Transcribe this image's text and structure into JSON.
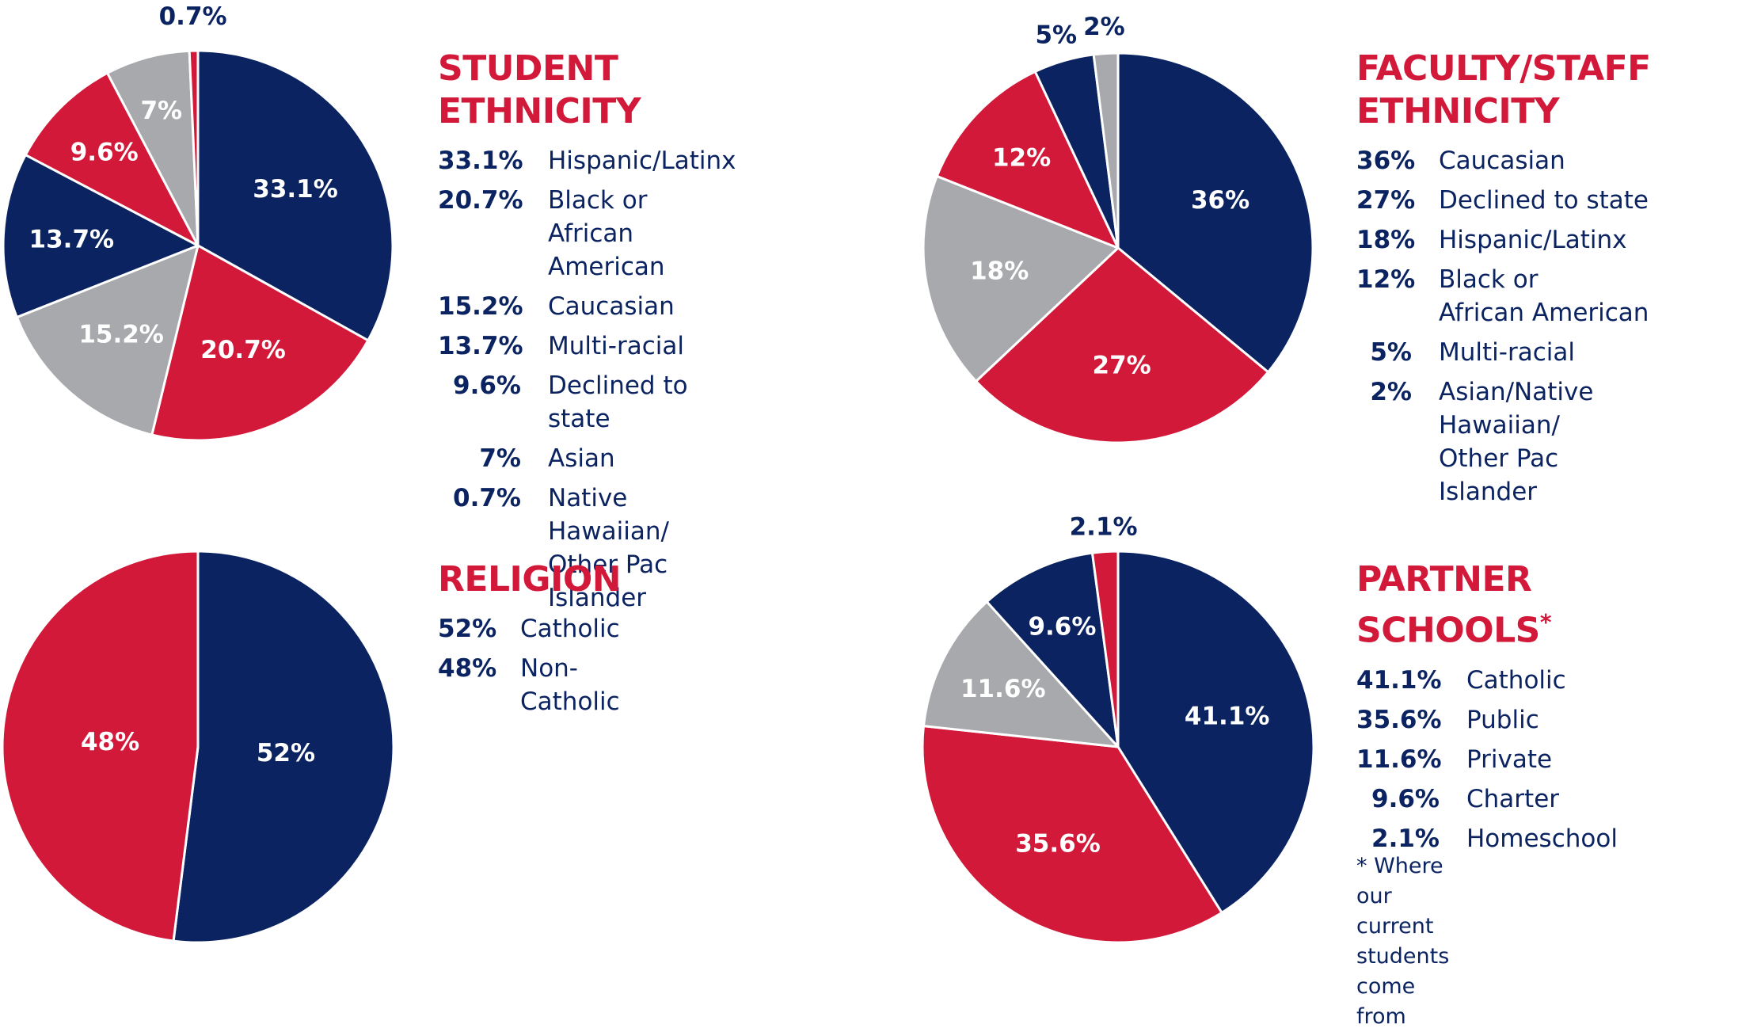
{
  "colors": {
    "navy": "#0b2461",
    "red": "#d2193a",
    "gray": "#a7a9ad",
    "white": "#ffffff"
  },
  "chart_data": [
    {
      "type": "pie",
      "title": "STUDENT ETHNICITY",
      "slices": [
        {
          "label": "Hispanic/Latinx",
          "value": 33.1,
          "pct": "33.1%",
          "color": "#0b2461"
        },
        {
          "label": "Black or\nAfrican American",
          "value": 20.7,
          "pct": "20.7%",
          "color": "#d2193a"
        },
        {
          "label": "Caucasian",
          "value": 15.2,
          "pct": "15.2%",
          "color": "#a7a9ad"
        },
        {
          "label": "Multi-racial",
          "value": 13.7,
          "pct": "13.7%",
          "color": "#0b2461"
        },
        {
          "label": "Declined to state",
          "value": 9.6,
          "pct": "9.6%",
          "color": "#d2193a"
        },
        {
          "label": "Asian",
          "value": 7,
          "pct": "7%",
          "color": "#a7a9ad"
        },
        {
          "label": "Native Hawaiian/\nOther Pac Islander",
          "value": 0.7,
          "pct": "0.7%",
          "color": "#d2193a"
        }
      ]
    },
    {
      "type": "pie",
      "title": "FACULTY/STAFF\nETHNICITY",
      "slices": [
        {
          "label": "Caucasian",
          "value": 36,
          "pct": "36%",
          "color": "#0b2461"
        },
        {
          "label": "Declined to state",
          "value": 27,
          "pct": "27%",
          "color": "#d2193a"
        },
        {
          "label": "Hispanic/Latinx",
          "value": 18,
          "pct": "18%",
          "color": "#a7a9ad"
        },
        {
          "label": "Black or\nAfrican American",
          "value": 12,
          "pct": "12%",
          "color": "#d2193a"
        },
        {
          "label": "Multi-racial",
          "value": 5,
          "pct": "5%",
          "color": "#0b2461"
        },
        {
          "label": "Asian/Native Hawaiian/\nOther Pac Islander",
          "value": 2,
          "pct": "2%",
          "color": "#a7a9ad"
        }
      ]
    },
    {
      "type": "pie",
      "title": "RELIGION",
      "slices": [
        {
          "label": "Catholic",
          "value": 52,
          "pct": "52%",
          "color": "#0b2461"
        },
        {
          "label": "Non-Catholic",
          "value": 48,
          "pct": "48%",
          "color": "#d2193a"
        }
      ]
    },
    {
      "type": "pie",
      "title": "PARTNER SCHOOLS",
      "title_mark": "*",
      "slices": [
        {
          "label": "Catholic",
          "value": 41.1,
          "pct": "41.1%",
          "color": "#0b2461"
        },
        {
          "label": "Public",
          "value": 35.6,
          "pct": "35.6%",
          "color": "#d2193a"
        },
        {
          "label": "Private",
          "value": 11.6,
          "pct": "11.6%",
          "color": "#a7a9ad"
        },
        {
          "label": "Charter",
          "value": 9.6,
          "pct": "9.6%",
          "color": "#0b2461"
        },
        {
          "label": "Homeschool",
          "value": 2.1,
          "pct": "2.1%",
          "color": "#d2193a"
        }
      ],
      "footnote": "* Where our current students\n  come from"
    }
  ]
}
